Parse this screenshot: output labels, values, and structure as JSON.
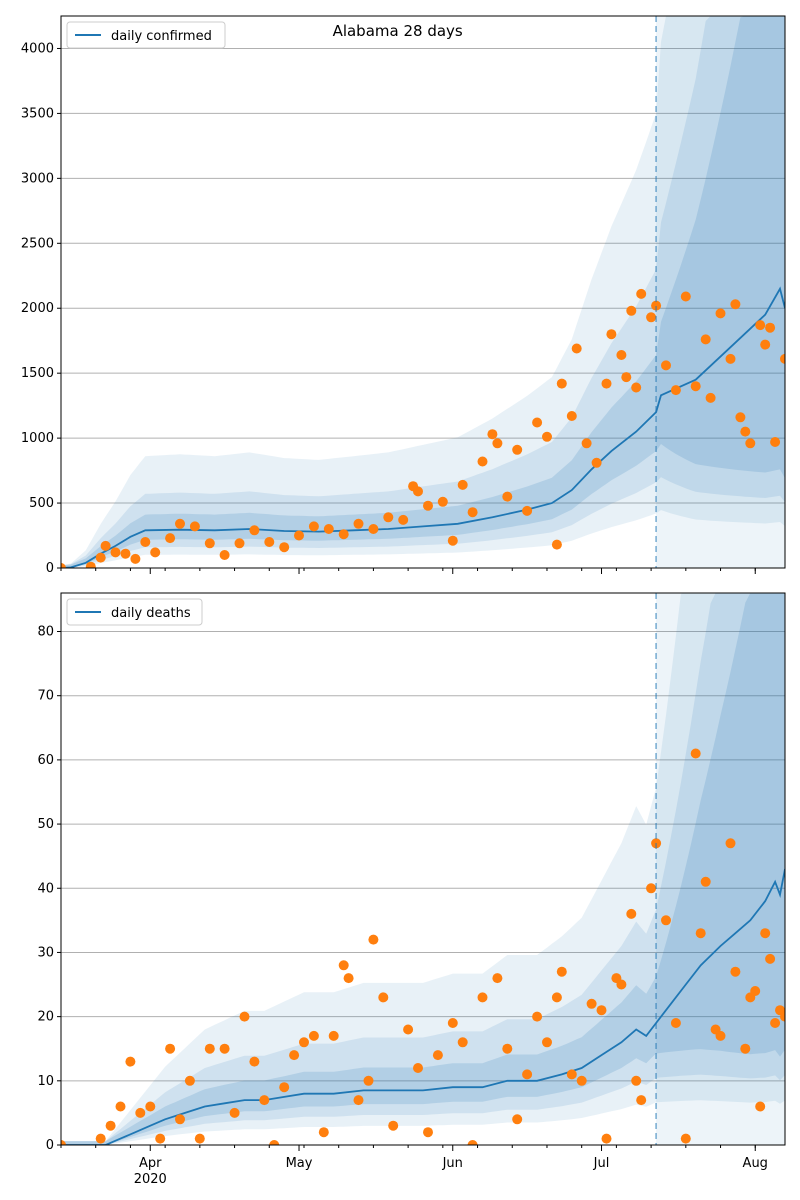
{
  "chart_data": [
    {
      "type": "line",
      "title": "Alabama 28 days",
      "legend": [
        "daily confirmed"
      ],
      "legend_placement": "top-left",
      "ylim": [
        0,
        4250
      ],
      "yticks": [
        0,
        500,
        1000,
        1500,
        2000,
        2500,
        3000,
        3500,
        4000
      ],
      "xlabel": "",
      "ylabel": "",
      "grid": "horizontal",
      "forecast_start": "2020-07-12",
      "series": [
        {
          "name": "daily confirmed",
          "points": [
            [
              "2020-03-14",
              0
            ],
            [
              "2020-03-16",
              5
            ],
            [
              "2020-03-19",
              40
            ],
            [
              "2020-03-22",
              110
            ],
            [
              "2020-03-25",
              170
            ],
            [
              "2020-03-28",
              240
            ],
            [
              "2020-03-31",
              290
            ],
            [
              "2020-04-07",
              295
            ],
            [
              "2020-04-14",
              290
            ],
            [
              "2020-04-21",
              300
            ],
            [
              "2020-04-28",
              285
            ],
            [
              "2020-05-05",
              280
            ],
            [
              "2020-05-12",
              290
            ],
            [
              "2020-05-19",
              300
            ],
            [
              "2020-05-26",
              320
            ],
            [
              "2020-06-02",
              340
            ],
            [
              "2020-06-09",
              390
            ],
            [
              "2020-06-16",
              450
            ],
            [
              "2020-06-21",
              500
            ],
            [
              "2020-06-25",
              600
            ],
            [
              "2020-06-29",
              760
            ],
            [
              "2020-07-03",
              900
            ],
            [
              "2020-07-08",
              1050
            ],
            [
              "2020-07-12",
              1200
            ],
            [
              "2020-07-13",
              1330
            ],
            [
              "2020-07-20",
              1450
            ],
            [
              "2020-07-27",
              1700
            ],
            [
              "2020-08-03",
              1950
            ],
            [
              "2020-08-06",
              2150
            ],
            [
              "2020-08-07",
              2000
            ]
          ]
        }
      ],
      "observed": [
        [
          "2020-03-14",
          0
        ],
        [
          "2020-03-20",
          10
        ],
        [
          "2020-03-22",
          80
        ],
        [
          "2020-03-23",
          170
        ],
        [
          "2020-03-25",
          120
        ],
        [
          "2020-03-27",
          110
        ],
        [
          "2020-03-29",
          70
        ],
        [
          "2020-03-31",
          200
        ],
        [
          "2020-04-02",
          120
        ],
        [
          "2020-04-05",
          230
        ],
        [
          "2020-04-07",
          340
        ],
        [
          "2020-04-10",
          320
        ],
        [
          "2020-04-13",
          190
        ],
        [
          "2020-04-16",
          100
        ],
        [
          "2020-04-19",
          190
        ],
        [
          "2020-04-22",
          290
        ],
        [
          "2020-04-25",
          200
        ],
        [
          "2020-04-28",
          160
        ],
        [
          "2020-05-01",
          250
        ],
        [
          "2020-05-04",
          320
        ],
        [
          "2020-05-07",
          300
        ],
        [
          "2020-05-10",
          260
        ],
        [
          "2020-05-13",
          340
        ],
        [
          "2020-05-16",
          300
        ],
        [
          "2020-05-19",
          390
        ],
        [
          "2020-05-22",
          370
        ],
        [
          "2020-05-24",
          630
        ],
        [
          "2020-05-25",
          590
        ],
        [
          "2020-05-27",
          480
        ],
        [
          "2020-05-30",
          510
        ],
        [
          "2020-06-01",
          210
        ],
        [
          "2020-06-03",
          640
        ],
        [
          "2020-06-05",
          430
        ],
        [
          "2020-06-07",
          820
        ],
        [
          "2020-06-09",
          1030
        ],
        [
          "2020-06-10",
          960
        ],
        [
          "2020-06-12",
          550
        ],
        [
          "2020-06-14",
          910
        ],
        [
          "2020-06-16",
          440
        ],
        [
          "2020-06-18",
          1120
        ],
        [
          "2020-06-20",
          1010
        ],
        [
          "2020-06-22",
          180
        ],
        [
          "2020-06-23",
          1420
        ],
        [
          "2020-06-25",
          1170
        ],
        [
          "2020-06-26",
          1690
        ],
        [
          "2020-06-28",
          960
        ],
        [
          "2020-06-30",
          810
        ],
        [
          "2020-07-02",
          1420
        ],
        [
          "2020-07-03",
          1800
        ],
        [
          "2020-07-05",
          1640
        ],
        [
          "2020-07-06",
          1470
        ],
        [
          "2020-07-07",
          1980
        ],
        [
          "2020-07-08",
          1390
        ],
        [
          "2020-07-09",
          2110
        ],
        [
          "2020-07-11",
          1930
        ],
        [
          "2020-07-12",
          2020
        ],
        [
          "2020-07-14",
          1560
        ],
        [
          "2020-07-16",
          1370
        ],
        [
          "2020-07-18",
          2090
        ],
        [
          "2020-07-20",
          1400
        ],
        [
          "2020-07-22",
          1760
        ],
        [
          "2020-07-23",
          1310
        ],
        [
          "2020-07-25",
          1960
        ],
        [
          "2020-07-27",
          1610
        ],
        [
          "2020-07-28",
          2030
        ],
        [
          "2020-07-29",
          1160
        ],
        [
          "2020-07-30",
          1050
        ],
        [
          "2020-07-31",
          960
        ],
        [
          "2020-08-02",
          1870
        ],
        [
          "2020-08-03",
          1720
        ],
        [
          "2020-08-04",
          1850
        ],
        [
          "2020-08-05",
          970
        ],
        [
          "2020-08-07",
          1610
        ]
      ]
    },
    {
      "type": "line",
      "title": "",
      "legend": [
        "daily deaths"
      ],
      "legend_placement": "top-left",
      "ylim": [
        0,
        86
      ],
      "yticks": [
        0,
        10,
        20,
        30,
        40,
        50,
        60,
        70,
        80
      ],
      "xlabel": "",
      "ylabel": "",
      "grid": "horizontal",
      "forecast_start": "2020-07-12",
      "xtick_labels": [
        "Apr\n2020",
        "May",
        "Jun",
        "Jul",
        "Aug"
      ],
      "series": [
        {
          "name": "daily deaths",
          "points": [
            [
              "2020-03-14",
              0
            ],
            [
              "2020-03-23",
              0
            ],
            [
              "2020-03-26",
              1
            ],
            [
              "2020-03-29",
              2
            ],
            [
              "2020-04-01",
              3
            ],
            [
              "2020-04-04",
              4
            ],
            [
              "2020-04-08",
              5
            ],
            [
              "2020-04-12",
              6
            ],
            [
              "2020-04-16",
              6.5
            ],
            [
              "2020-04-20",
              7
            ],
            [
              "2020-04-24",
              7
            ],
            [
              "2020-04-28",
              7.5
            ],
            [
              "2020-05-02",
              8
            ],
            [
              "2020-05-08",
              8
            ],
            [
              "2020-05-14",
              8.5
            ],
            [
              "2020-05-20",
              8.5
            ],
            [
              "2020-05-26",
              8.5
            ],
            [
              "2020-06-01",
              9
            ],
            [
              "2020-06-07",
              9
            ],
            [
              "2020-06-12",
              10
            ],
            [
              "2020-06-18",
              10
            ],
            [
              "2020-06-23",
              11
            ],
            [
              "2020-06-27",
              12
            ],
            [
              "2020-07-01",
              14
            ],
            [
              "2020-07-05",
              16
            ],
            [
              "2020-07-08",
              18
            ],
            [
              "2020-07-10",
              17
            ],
            [
              "2020-07-12",
              19
            ],
            [
              "2020-07-15",
              22
            ],
            [
              "2020-07-18",
              25
            ],
            [
              "2020-07-21",
              28
            ],
            [
              "2020-07-25",
              31
            ],
            [
              "2020-07-28",
              33
            ],
            [
              "2020-07-31",
              35
            ],
            [
              "2020-08-03",
              38
            ],
            [
              "2020-08-05",
              41
            ],
            [
              "2020-08-06",
              39
            ],
            [
              "2020-08-07",
              43
            ]
          ]
        }
      ],
      "observed": [
        [
          "2020-03-14",
          0
        ],
        [
          "2020-03-22",
          1
        ],
        [
          "2020-03-24",
          3
        ],
        [
          "2020-03-26",
          6
        ],
        [
          "2020-03-28",
          13
        ],
        [
          "2020-03-30",
          5
        ],
        [
          "2020-04-01",
          6
        ],
        [
          "2020-04-03",
          1
        ],
        [
          "2020-04-05",
          15
        ],
        [
          "2020-04-07",
          4
        ],
        [
          "2020-04-09",
          10
        ],
        [
          "2020-04-11",
          1
        ],
        [
          "2020-04-13",
          15
        ],
        [
          "2020-04-16",
          15
        ],
        [
          "2020-04-18",
          5
        ],
        [
          "2020-04-20",
          20
        ],
        [
          "2020-04-22",
          13
        ],
        [
          "2020-04-24",
          7
        ],
        [
          "2020-04-26",
          0
        ],
        [
          "2020-04-28",
          9
        ],
        [
          "2020-04-30",
          14
        ],
        [
          "2020-05-02",
          16
        ],
        [
          "2020-05-04",
          17
        ],
        [
          "2020-05-06",
          2
        ],
        [
          "2020-05-08",
          17
        ],
        [
          "2020-05-10",
          28
        ],
        [
          "2020-05-11",
          26
        ],
        [
          "2020-05-13",
          7
        ],
        [
          "2020-05-15",
          10
        ],
        [
          "2020-05-16",
          32
        ],
        [
          "2020-05-18",
          23
        ],
        [
          "2020-05-20",
          3
        ],
        [
          "2020-05-23",
          18
        ],
        [
          "2020-05-25",
          12
        ],
        [
          "2020-05-27",
          2
        ],
        [
          "2020-05-29",
          14
        ],
        [
          "2020-06-01",
          19
        ],
        [
          "2020-06-03",
          16
        ],
        [
          "2020-06-05",
          0
        ],
        [
          "2020-06-07",
          23
        ],
        [
          "2020-06-10",
          26
        ],
        [
          "2020-06-12",
          15
        ],
        [
          "2020-06-14",
          4
        ],
        [
          "2020-06-16",
          11
        ],
        [
          "2020-06-18",
          20
        ],
        [
          "2020-06-20",
          16
        ],
        [
          "2020-06-22",
          23
        ],
        [
          "2020-06-23",
          27
        ],
        [
          "2020-06-25",
          11
        ],
        [
          "2020-06-27",
          10
        ],
        [
          "2020-06-29",
          22
        ],
        [
          "2020-07-01",
          21
        ],
        [
          "2020-07-02",
          1
        ],
        [
          "2020-07-04",
          26
        ],
        [
          "2020-07-05",
          25
        ],
        [
          "2020-07-07",
          36
        ],
        [
          "2020-07-08",
          10
        ],
        [
          "2020-07-09",
          7
        ],
        [
          "2020-07-11",
          40
        ],
        [
          "2020-07-12",
          47
        ],
        [
          "2020-07-14",
          35
        ],
        [
          "2020-07-16",
          19
        ],
        [
          "2020-07-18",
          1
        ],
        [
          "2020-07-20",
          61
        ],
        [
          "2020-07-21",
          33
        ],
        [
          "2020-07-22",
          41
        ],
        [
          "2020-07-24",
          18
        ],
        [
          "2020-07-25",
          17
        ],
        [
          "2020-07-27",
          47
        ],
        [
          "2020-07-28",
          27
        ],
        [
          "2020-07-30",
          15
        ],
        [
          "2020-07-31",
          23
        ],
        [
          "2020-08-01",
          24
        ],
        [
          "2020-08-02",
          6
        ],
        [
          "2020-08-03",
          33
        ],
        [
          "2020-08-04",
          29
        ],
        [
          "2020-08-05",
          19
        ],
        [
          "2020-08-06",
          21
        ],
        [
          "2020-08-07",
          20
        ]
      ]
    }
  ],
  "colors": {
    "line": "#1f77b4",
    "observed": "#ff7f0e",
    "band": "#1f77b4",
    "forecast_line": "#1f77b4",
    "grid": "#b0b0b0"
  }
}
